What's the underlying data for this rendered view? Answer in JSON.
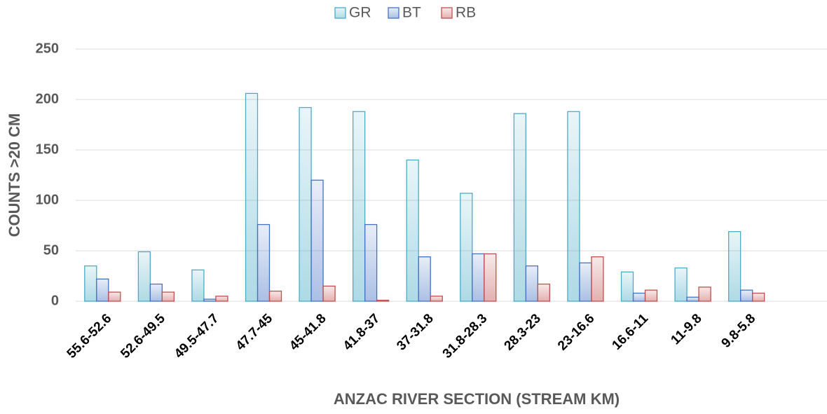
{
  "chart_data": {
    "type": "bar",
    "x_label": "ANZAC RIVER SECTION (STREAM KM)",
    "y_label": "COUNTS >20 CM",
    "categories": [
      "55.6-52.6",
      "52.6-49.5",
      "49.5-47.7",
      "47.7-45",
      "45-41.8",
      "41.8-37",
      "37-31.8",
      "31.8-28.3",
      "28.3-23",
      "23-16.6",
      "16.6-11",
      "11-9.8",
      "9.8-5.8",
      null
    ],
    "series": [
      {
        "name": "GR",
        "color": "#4bacc6",
        "values": [
          35,
          49,
          31,
          206,
          192,
          188,
          140,
          107,
          186,
          188,
          29,
          33,
          69,
          null
        ]
      },
      {
        "name": "BT",
        "color": "#4472c4",
        "values": [
          22,
          17,
          2,
          76,
          120,
          76,
          44,
          47,
          35,
          38,
          8,
          4,
          11,
          null
        ]
      },
      {
        "name": "RB",
        "color": "#c0504d",
        "values": [
          9,
          9,
          5,
          10,
          15,
          1,
          5,
          47,
          17,
          44,
          11,
          14,
          8,
          null
        ]
      }
    ],
    "ylim": [
      0,
      250
    ],
    "yticks": [
      0,
      50,
      100,
      150,
      200,
      250
    ],
    "grid": true,
    "legend": "top"
  }
}
